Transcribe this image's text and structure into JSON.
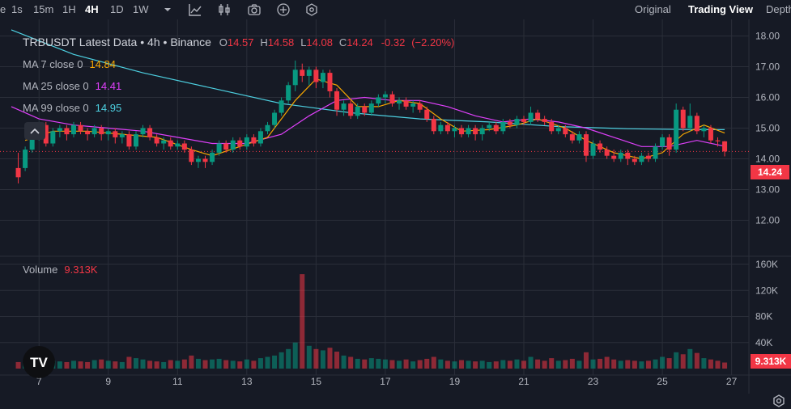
{
  "toolbar": {
    "intervals": [
      "1s",
      "15m",
      "1H",
      "4H",
      "1D",
      "1W"
    ],
    "active_interval": "4H",
    "first_item": "e",
    "views": [
      "Original",
      "Trading View",
      "Depth"
    ],
    "active_view": "Trading View"
  },
  "legend": {
    "symbol": "TRBUSDT Latest Data",
    "sep1": " • ",
    "interval": "4h",
    "sep2": " • ",
    "exchange": "Binance",
    "o_label": "O",
    "o_value": "14.57",
    "h_label": "H",
    "h_value": "14.58",
    "l_label": "L",
    "l_value": "14.08",
    "c_label": "C",
    "c_value": "14.24",
    "change": "-0.32",
    "change_pct": "(−2.20%)"
  },
  "ma": [
    {
      "label": "MA 7 close 0",
      "value": "14.84",
      "color": "#f7a600"
    },
    {
      "label": "MA 25 close 0",
      "value": "14.41",
      "color": "#e040fb"
    },
    {
      "label": "MA 99 close 0",
      "value": "14.95",
      "color": "#4dd0e1"
    }
  ],
  "volume": {
    "label": "Volume",
    "value": "9.313K"
  },
  "price_badge": "14.24",
  "volume_badge": "9.313K",
  "price_axis": [
    "18.00",
    "17.00",
    "16.00",
    "15.00",
    "14.00",
    "13.00",
    "12.00"
  ],
  "volume_axis": [
    "160K",
    "120K",
    "80K",
    "40K"
  ],
  "time_axis": [
    "7",
    "9",
    "11",
    "13",
    "15",
    "17",
    "19",
    "21",
    "23",
    "25",
    "27"
  ],
  "colors": {
    "up": "#089981",
    "down": "#f23645",
    "ma7": "#f7a600",
    "ma25": "#e040fb",
    "ma99": "#4dd0e1",
    "bg": "#161a25",
    "grid": "#2a2e39"
  },
  "icons": [
    "chevron-down-icon",
    "indicators-icon",
    "candles-icon",
    "camera-icon",
    "plus-icon",
    "settings-hex-icon",
    "tv-logo-icon",
    "gear-icon",
    "chevron-up-icon"
  ],
  "chart_data": {
    "type": "candlestick",
    "symbol": "TRBUSDT",
    "interval": "4h",
    "price_range": [
      11.6,
      18.6
    ],
    "volume_range": [
      0,
      165
    ],
    "volume_unit": "K",
    "x_range": [
      6.2,
      27.5
    ],
    "bars": [
      [
        6.4,
        13.7,
        13.4,
        14.2,
        13.2,
        10,
        0
      ],
      [
        6.6,
        13.7,
        14.3,
        14.4,
        13.6,
        12,
        1
      ],
      [
        6.8,
        14.3,
        14.8,
        14.9,
        14.2,
        15,
        1
      ],
      [
        7.0,
        14.8,
        15.1,
        15.2,
        14.6,
        14,
        1
      ],
      [
        7.2,
        15.1,
        14.5,
        15.2,
        14.4,
        16,
        0
      ],
      [
        7.4,
        14.5,
        14.9,
        15.0,
        14.4,
        12,
        1
      ],
      [
        7.6,
        14.9,
        15.0,
        15.1,
        14.7,
        11,
        1
      ],
      [
        7.8,
        15.0,
        14.8,
        15.1,
        14.6,
        10,
        0
      ],
      [
        8.0,
        14.8,
        15.1,
        15.2,
        14.7,
        12,
        1
      ],
      [
        8.2,
        15.1,
        14.9,
        15.2,
        14.8,
        11,
        0
      ],
      [
        8.4,
        14.9,
        14.8,
        15.0,
        14.6,
        10,
        0
      ],
      [
        8.6,
        14.8,
        15.0,
        15.1,
        14.7,
        13,
        1
      ],
      [
        8.8,
        15.0,
        14.8,
        15.1,
        14.6,
        14,
        0
      ],
      [
        9.0,
        14.8,
        14.9,
        15.0,
        14.6,
        12,
        1
      ],
      [
        9.2,
        14.9,
        14.7,
        15.0,
        14.5,
        11,
        0
      ],
      [
        9.4,
        14.7,
        14.8,
        14.9,
        14.5,
        10,
        1
      ],
      [
        9.6,
        14.8,
        14.4,
        14.9,
        14.3,
        18,
        0
      ],
      [
        9.8,
        14.4,
        14.8,
        14.9,
        14.3,
        16,
        1
      ],
      [
        10.0,
        14.8,
        15.0,
        15.1,
        14.7,
        14,
        1
      ],
      [
        10.2,
        15.0,
        14.7,
        15.1,
        14.6,
        12,
        0
      ],
      [
        10.4,
        14.7,
        14.5,
        14.8,
        14.4,
        11,
        0
      ],
      [
        10.6,
        14.5,
        14.6,
        14.7,
        14.3,
        10,
        1
      ],
      [
        10.8,
        14.6,
        14.4,
        14.7,
        14.3,
        13,
        0
      ],
      [
        11.0,
        14.4,
        14.5,
        14.6,
        14.3,
        12,
        1
      ],
      [
        11.2,
        14.5,
        14.3,
        14.6,
        14.2,
        14,
        0
      ],
      [
        11.4,
        14.3,
        13.9,
        14.4,
        13.8,
        20,
        0
      ],
      [
        11.6,
        13.9,
        14.0,
        14.1,
        13.7,
        15,
        1
      ],
      [
        11.8,
        14.0,
        13.9,
        14.1,
        13.7,
        13,
        0
      ],
      [
        12.0,
        13.9,
        14.2,
        14.3,
        13.8,
        14,
        1
      ],
      [
        12.2,
        14.2,
        14.5,
        14.6,
        14.1,
        15,
        1
      ],
      [
        12.4,
        14.5,
        14.3,
        14.6,
        14.2,
        13,
        0
      ],
      [
        12.6,
        14.3,
        14.6,
        14.7,
        14.2,
        12,
        1
      ],
      [
        12.8,
        14.6,
        14.4,
        14.7,
        14.3,
        11,
        0
      ],
      [
        13.0,
        14.4,
        14.7,
        14.8,
        14.3,
        14,
        1
      ],
      [
        13.2,
        14.7,
        14.5,
        14.8,
        14.4,
        12,
        0
      ],
      [
        13.4,
        14.5,
        14.9,
        15.0,
        14.4,
        16,
        1
      ],
      [
        13.6,
        14.9,
        15.1,
        15.2,
        14.8,
        18,
        1
      ],
      [
        13.8,
        15.1,
        15.5,
        15.6,
        15.0,
        20,
        1
      ],
      [
        14.0,
        15.5,
        15.9,
        16.0,
        15.4,
        25,
        1
      ],
      [
        14.2,
        15.9,
        16.4,
        16.5,
        15.8,
        30,
        1
      ],
      [
        14.4,
        16.4,
        16.9,
        17.2,
        16.2,
        40,
        1
      ],
      [
        14.6,
        16.9,
        16.7,
        17.1,
        16.5,
        145,
        0
      ],
      [
        14.8,
        16.7,
        16.9,
        17.0,
        16.4,
        35,
        1
      ],
      [
        15.0,
        16.9,
        16.5,
        17.0,
        16.3,
        30,
        0
      ],
      [
        15.2,
        16.5,
        16.8,
        16.9,
        16.3,
        28,
        1
      ],
      [
        15.4,
        16.8,
        16.2,
        16.9,
        16.0,
        32,
        0
      ],
      [
        15.6,
        16.2,
        15.6,
        16.3,
        15.4,
        26,
        0
      ],
      [
        15.8,
        15.6,
        15.8,
        15.9,
        15.4,
        20,
        1
      ],
      [
        16.0,
        15.8,
        15.4,
        15.9,
        15.3,
        18,
        0
      ],
      [
        16.2,
        15.4,
        15.7,
        15.8,
        15.3,
        15,
        1
      ],
      [
        16.4,
        15.7,
        15.5,
        15.8,
        15.4,
        14,
        0
      ],
      [
        16.6,
        15.5,
        15.8,
        15.9,
        15.4,
        16,
        1
      ],
      [
        16.8,
        15.8,
        16.0,
        16.1,
        15.7,
        15,
        1
      ],
      [
        17.0,
        16.0,
        16.1,
        16.2,
        15.8,
        14,
        1
      ],
      [
        17.2,
        16.1,
        15.8,
        16.2,
        15.7,
        13,
        0
      ],
      [
        17.4,
        15.8,
        15.9,
        16.0,
        15.6,
        12,
        1
      ],
      [
        17.6,
        15.9,
        15.7,
        16.0,
        15.6,
        14,
        0
      ],
      [
        17.8,
        15.7,
        15.8,
        15.9,
        15.5,
        11,
        1
      ],
      [
        18.0,
        15.8,
        15.6,
        15.9,
        15.5,
        13,
        0
      ],
      [
        18.2,
        15.6,
        15.3,
        15.7,
        15.2,
        15,
        0
      ],
      [
        18.4,
        15.3,
        14.9,
        15.4,
        14.8,
        18,
        0
      ],
      [
        18.6,
        14.9,
        15.1,
        15.2,
        14.8,
        14,
        1
      ],
      [
        18.8,
        15.1,
        14.9,
        15.2,
        14.8,
        12,
        0
      ],
      [
        19.0,
        14.9,
        15.0,
        15.1,
        14.7,
        11,
        1
      ],
      [
        19.2,
        15.0,
        14.8,
        15.1,
        14.7,
        13,
        0
      ],
      [
        19.4,
        14.8,
        15.0,
        15.1,
        14.7,
        12,
        1
      ],
      [
        19.6,
        15.0,
        14.8,
        15.1,
        14.6,
        11,
        0
      ],
      [
        19.8,
        14.8,
        15.0,
        15.1,
        14.6,
        12,
        1
      ],
      [
        20.0,
        15.0,
        15.1,
        15.2,
        14.9,
        10,
        1
      ],
      [
        20.2,
        15.1,
        14.9,
        15.2,
        14.8,
        11,
        0
      ],
      [
        20.4,
        14.9,
        15.2,
        15.3,
        14.8,
        13,
        1
      ],
      [
        20.6,
        15.2,
        15.1,
        15.3,
        15.0,
        12,
        0
      ],
      [
        20.8,
        15.1,
        15.3,
        15.4,
        15.0,
        14,
        1
      ],
      [
        21.0,
        15.3,
        15.2,
        15.4,
        15.1,
        12,
        0
      ],
      [
        21.2,
        15.2,
        15.5,
        15.7,
        15.1,
        18,
        1
      ],
      [
        21.4,
        15.5,
        15.3,
        15.6,
        15.2,
        14,
        0
      ],
      [
        21.6,
        15.3,
        15.2,
        15.4,
        15.1,
        12,
        0
      ],
      [
        21.8,
        15.2,
        14.9,
        15.3,
        14.8,
        16,
        0
      ],
      [
        22.0,
        14.9,
        15.0,
        15.1,
        14.8,
        12,
        1
      ],
      [
        22.2,
        15.0,
        14.8,
        15.1,
        14.7,
        13,
        0
      ],
      [
        22.4,
        14.8,
        14.6,
        14.9,
        14.5,
        15,
        0
      ],
      [
        22.6,
        14.6,
        14.8,
        14.9,
        14.5,
        12,
        1
      ],
      [
        22.8,
        14.8,
        14.1,
        14.9,
        13.9,
        25,
        0
      ],
      [
        23.0,
        14.1,
        14.5,
        14.6,
        14.0,
        14,
        1
      ],
      [
        23.2,
        14.5,
        14.3,
        14.6,
        14.2,
        15,
        0
      ],
      [
        23.4,
        14.3,
        14.1,
        14.4,
        14.0,
        18,
        0
      ],
      [
        23.6,
        14.1,
        14.0,
        14.3,
        13.9,
        14,
        0
      ],
      [
        23.8,
        14.0,
        14.2,
        14.3,
        13.9,
        12,
        1
      ],
      [
        24.0,
        14.2,
        14.0,
        14.3,
        13.8,
        13,
        0
      ],
      [
        24.2,
        14.0,
        13.9,
        14.1,
        13.8,
        12,
        0
      ],
      [
        24.4,
        13.9,
        14.1,
        14.2,
        13.8,
        11,
        1
      ],
      [
        24.6,
        14.1,
        14.0,
        14.2,
        13.9,
        12,
        0
      ],
      [
        24.8,
        14.0,
        14.4,
        14.5,
        13.9,
        14,
        1
      ],
      [
        25.0,
        14.4,
        14.7,
        14.8,
        14.3,
        18,
        1
      ],
      [
        25.2,
        14.7,
        14.3,
        14.8,
        14.1,
        16,
        0
      ],
      [
        25.4,
        14.3,
        15.6,
        15.8,
        14.2,
        25,
        1
      ],
      [
        25.6,
        15.6,
        15.0,
        15.7,
        14.9,
        22,
        0
      ],
      [
        25.8,
        15.0,
        15.4,
        15.8,
        14.9,
        30,
        1
      ],
      [
        26.0,
        15.4,
        14.9,
        15.5,
        14.8,
        24,
        0
      ],
      [
        26.2,
        14.9,
        15.0,
        15.1,
        14.7,
        16,
        1
      ],
      [
        26.4,
        15.0,
        14.6,
        15.1,
        14.5,
        14,
        0
      ],
      [
        26.6,
        14.6,
        14.57,
        14.7,
        14.4,
        12,
        0
      ],
      [
        26.8,
        14.57,
        14.24,
        14.58,
        14.08,
        9.3,
        0
      ]
    ],
    "ma7": [
      [
        6.6,
        14.6
      ],
      [
        7.4,
        14.9
      ],
      [
        8.4,
        14.9
      ],
      [
        9.4,
        14.8
      ],
      [
        10.4,
        14.7
      ],
      [
        11.4,
        14.3
      ],
      [
        12.0,
        14.1
      ],
      [
        12.8,
        14.4
      ],
      [
        13.6,
        14.7
      ],
      [
        14.4,
        15.9
      ],
      [
        15.0,
        16.6
      ],
      [
        15.6,
        16.4
      ],
      [
        16.2,
        15.7
      ],
      [
        16.8,
        15.7
      ],
      [
        17.4,
        15.9
      ],
      [
        18.0,
        15.8
      ],
      [
        18.6,
        15.3
      ],
      [
        19.2,
        14.9
      ],
      [
        20.0,
        14.95
      ],
      [
        20.8,
        15.1
      ],
      [
        21.4,
        15.3
      ],
      [
        22.2,
        15.0
      ],
      [
        22.8,
        14.6
      ],
      [
        23.6,
        14.2
      ],
      [
        24.4,
        14.0
      ],
      [
        25.0,
        14.2
      ],
      [
        25.6,
        14.8
      ],
      [
        26.2,
        15.1
      ],
      [
        26.8,
        14.84
      ]
    ],
    "ma25": [
      [
        6.2,
        15.7
      ],
      [
        7.0,
        15.3
      ],
      [
        8.0,
        15.1
      ],
      [
        9.0,
        15.0
      ],
      [
        10.0,
        14.9
      ],
      [
        11.0,
        14.7
      ],
      [
        12.0,
        14.5
      ],
      [
        13.0,
        14.5
      ],
      [
        14.0,
        14.8
      ],
      [
        14.8,
        15.4
      ],
      [
        15.6,
        15.9
      ],
      [
        16.4,
        16.0
      ],
      [
        17.2,
        15.9
      ],
      [
        18.0,
        15.9
      ],
      [
        18.8,
        15.7
      ],
      [
        19.6,
        15.4
      ],
      [
        20.4,
        15.2
      ],
      [
        21.2,
        15.3
      ],
      [
        22.0,
        15.2
      ],
      [
        22.8,
        15.0
      ],
      [
        23.6,
        14.7
      ],
      [
        24.4,
        14.4
      ],
      [
        25.2,
        14.4
      ],
      [
        26.0,
        14.6
      ],
      [
        26.8,
        14.41
      ]
    ],
    "ma99": [
      [
        6.2,
        18.2
      ],
      [
        8.0,
        17.4
      ],
      [
        10.0,
        16.8
      ],
      [
        12.0,
        16.3
      ],
      [
        14.0,
        15.8
      ],
      [
        16.0,
        15.5
      ],
      [
        18.0,
        15.3
      ],
      [
        20.0,
        15.2
      ],
      [
        22.0,
        15.05
      ],
      [
        24.0,
        14.98
      ],
      [
        26.0,
        14.95
      ],
      [
        26.8,
        14.95
      ]
    ]
  }
}
